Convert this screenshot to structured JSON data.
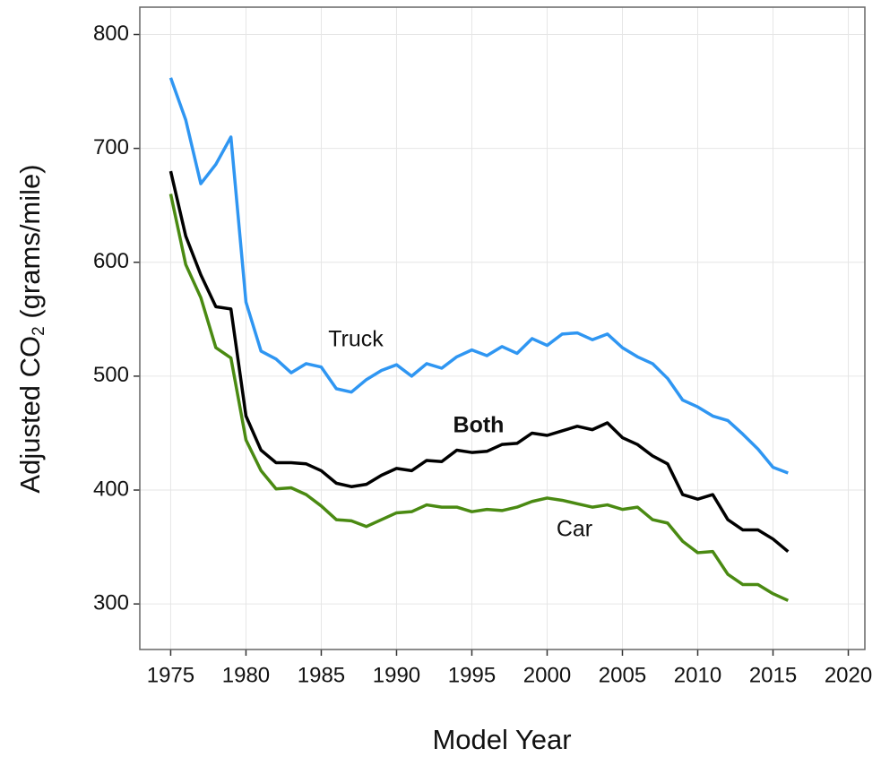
{
  "chart_data": {
    "type": "line",
    "x_label": "Model Year",
    "y_label": [
      "Adjusted CO",
      "2",
      " (grams/mile)"
    ],
    "x": [
      1975,
      1976,
      1977,
      1978,
      1979,
      1980,
      1981,
      1982,
      1983,
      1984,
      1985,
      1986,
      1987,
      1988,
      1989,
      1990,
      1991,
      1992,
      1993,
      1994,
      1995,
      1996,
      1997,
      1998,
      1999,
      2000,
      2001,
      2002,
      2003,
      2004,
      2005,
      2006,
      2007,
      2008,
      2009,
      2010,
      2011,
      2012,
      2013,
      2014,
      2015,
      2016
    ],
    "series": [
      {
        "name": "Truck",
        "color": "#2f96f2",
        "values": [
          762,
          725,
          669,
          686,
          710,
          565,
          522,
          515,
          503,
          511,
          508,
          489,
          486,
          497,
          505,
          510,
          500,
          511,
          507,
          517,
          523,
          518,
          526,
          520,
          533,
          527,
          537,
          538,
          532,
          537,
          525,
          517,
          511,
          498,
          479,
          473,
          465,
          461,
          449,
          436,
          420,
          415
        ]
      },
      {
        "name": "Both",
        "color": "#000000",
        "values": [
          680,
          623,
          589,
          561,
          559,
          465,
          435,
          424,
          424,
          423,
          417,
          406,
          403,
          405,
          413,
          419,
          417,
          426,
          425,
          435,
          433,
          434,
          440,
          441,
          450,
          448,
          452,
          456,
          453,
          459,
          446,
          440,
          430,
          423,
          396,
          392,
          396,
          374,
          365,
          365,
          357,
          346
        ]
      },
      {
        "name": "Car",
        "color": "#4a8a12",
        "values": [
          660,
          598,
          569,
          525,
          516,
          444,
          417,
          401,
          402,
          396,
          386,
          374,
          373,
          368,
          374,
          380,
          381,
          387,
          385,
          385,
          381,
          383,
          382,
          385,
          390,
          393,
          391,
          388,
          385,
          387,
          383,
          385,
          374,
          371,
          355,
          345,
          346,
          326,
          317,
          317,
          309,
          303
        ]
      }
    ],
    "xlim": [
      1972.95,
      2021.1
    ],
    "ylim": [
      260,
      824
    ],
    "xticks": [
      1975,
      1980,
      1985,
      1990,
      1995,
      2000,
      2005,
      2010,
      2015,
      2020
    ],
    "yticks": [
      300,
      400,
      500,
      600,
      700,
      800
    ],
    "grid": true
  }
}
